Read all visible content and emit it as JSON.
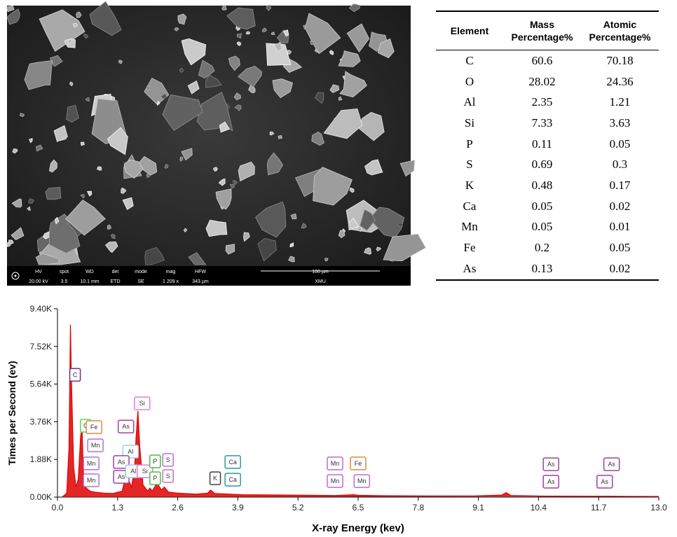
{
  "sem": {
    "info": [
      {
        "name": "HV",
        "value": "20.00 kV"
      },
      {
        "name": "spot",
        "value": "3.5"
      },
      {
        "name": "WD",
        "value": "10.1 mm"
      },
      {
        "name": "det",
        "value": "ETD"
      },
      {
        "name": "mode",
        "value": "SE"
      },
      {
        "name": "mag",
        "value": "1 209 x"
      },
      {
        "name": "HFW",
        "value": "343 µm"
      }
    ],
    "scale_bar": "100 µm",
    "lab": "XMU"
  },
  "table": {
    "header": [
      "Element",
      "Mass Percentage%",
      "Atomic Percentage%"
    ],
    "rows": [
      [
        "C",
        60.6,
        70.18
      ],
      [
        "O",
        28.02,
        24.36
      ],
      [
        "Al",
        2.35,
        1.21
      ],
      [
        "Si",
        7.33,
        3.63
      ],
      [
        "P",
        0.11,
        0.05
      ],
      [
        "S",
        0.69,
        0.3
      ],
      [
        "K",
        0.48,
        0.17
      ],
      [
        "Ca",
        0.05,
        0.02
      ],
      [
        "Mn",
        0.05,
        0.01
      ],
      [
        "Fe",
        0.2,
        0.05
      ],
      [
        "As",
        0.13,
        0.02
      ]
    ]
  },
  "chart_data": {
    "type": "line",
    "x_label": "X-ray Energy (kev)",
    "y_label": "Times per Second (ev)",
    "color": "#e00000",
    "x": [
      0.1,
      0.2,
      0.25,
      0.28,
      0.3,
      0.35,
      0.4,
      0.45,
      0.5,
      0.53,
      0.56,
      0.6,
      0.7,
      0.8,
      1.0,
      1.2,
      1.4,
      1.45,
      1.49,
      1.53,
      1.6,
      1.67,
      1.7,
      1.74,
      1.78,
      1.85,
      1.95,
      2.0,
      2.05,
      2.15,
      2.25,
      2.31,
      2.4,
      2.6,
      3.0,
      3.25,
      3.31,
      3.4,
      4.0,
      5.0,
      6.0,
      6.4,
      6.5,
      7.0,
      8.0,
      9.0,
      9.6,
      9.7,
      9.8,
      10.5,
      12.0,
      13.0
    ],
    "values": [
      0,
      200,
      2500,
      8600,
      6000,
      1500,
      500,
      900,
      3000,
      3500,
      1200,
      500,
      300,
      250,
      200,
      180,
      300,
      800,
      1500,
      900,
      500,
      1500,
      3000,
      4300,
      2500,
      600,
      300,
      450,
      300,
      700,
      350,
      500,
      250,
      200,
      150,
      200,
      350,
      180,
      120,
      100,
      80,
      120,
      90,
      70,
      60,
      60,
      100,
      220,
      80,
      50,
      40,
      30
    ],
    "xlim": [
      0,
      13
    ],
    "ylim": [
      0,
      9400
    ],
    "xticks": [
      {
        "value": 0,
        "label": "0.0"
      },
      1.3,
      2.6,
      3.9,
      5.2,
      6.5,
      7.8,
      9.1,
      10.4,
      11.7,
      {
        "value": 13,
        "label": "13.0"
      }
    ],
    "yticks": [
      {
        "value": 0,
        "label": "0.00K"
      },
      {
        "value": 1880,
        "label": "1.88K"
      },
      {
        "value": 3760,
        "label": "3.76K"
      },
      {
        "value": 5640,
        "label": "5.64K"
      },
      {
        "value": 7520,
        "label": "7.52K"
      },
      {
        "value": 9400,
        "label": "9.40K"
      }
    ],
    "annotations": [
      {
        "text": "C",
        "x": 0.38,
        "y": 6100,
        "color": "#7b2a7b"
      },
      {
        "text": "C",
        "x": 0.61,
        "y": 3560,
        "color": "#5fd35f"
      },
      {
        "text": "Fe",
        "x": 0.79,
        "y": 3490,
        "color": "#e08a3a"
      },
      {
        "text": "Mn",
        "x": 0.82,
        "y": 2580,
        "color": "#b56fd8"
      },
      {
        "text": "Mn",
        "x": 0.73,
        "y": 1680,
        "color": "#b56fd8"
      },
      {
        "text": "Mn",
        "x": 0.73,
        "y": 840,
        "color": "#b56fd8"
      },
      {
        "text": "As",
        "x": 1.48,
        "y": 3520,
        "color": "#a040a0"
      },
      {
        "text": "Si",
        "x": 1.83,
        "y": 4680,
        "color": "#e07be0"
      },
      {
        "text": "Al",
        "x": 1.58,
        "y": 2270,
        "color": "#9ccde8"
      },
      {
        "text": "As",
        "x": 1.38,
        "y": 1750,
        "color": "#a040a0"
      },
      {
        "text": "As",
        "x": 1.38,
        "y": 1010,
        "color": "#a040a0"
      },
      {
        "text": "Al",
        "x": 1.64,
        "y": 1290,
        "color": "#9ccde8"
      },
      {
        "text": "Si",
        "x": 1.89,
        "y": 1290,
        "color": "#e07be0"
      },
      {
        "text": "P",
        "x": 2.11,
        "y": 1780,
        "color": "#40c040"
      },
      {
        "text": "P",
        "x": 2.11,
        "y": 940,
        "color": "#40c040"
      },
      {
        "text": "S",
        "x": 2.39,
        "y": 1850,
        "color": "#c070d0"
      },
      {
        "text": "S",
        "x": 2.39,
        "y": 1050,
        "color": "#c070d0"
      },
      {
        "text": "K",
        "x": 3.41,
        "y": 940,
        "color": "#404040"
      },
      {
        "text": "Ca",
        "x": 3.79,
        "y": 1750,
        "color": "#2a9a9a"
      },
      {
        "text": "Ca",
        "x": 3.79,
        "y": 870,
        "color": "#2a9a9a"
      },
      {
        "text": "Mn",
        "x": 6.0,
        "y": 1680,
        "color": "#b56fd8"
      },
      {
        "text": "Mn",
        "x": 6.0,
        "y": 800,
        "color": "#b56fd8"
      },
      {
        "text": "Fe",
        "x": 6.5,
        "y": 1680,
        "color": "#e08a3a"
      },
      {
        "text": "Mn",
        "x": 6.58,
        "y": 800,
        "color": "#b56fd8"
      },
      {
        "text": "As",
        "x": 10.67,
        "y": 1640,
        "color": "#a040a0"
      },
      {
        "text": "As",
        "x": 10.67,
        "y": 770,
        "color": "#a040a0"
      },
      {
        "text": "As",
        "x": 11.98,
        "y": 1640,
        "color": "#a040a0"
      },
      {
        "text": "As",
        "x": 11.83,
        "y": 770,
        "color": "#a040a0"
      }
    ]
  }
}
